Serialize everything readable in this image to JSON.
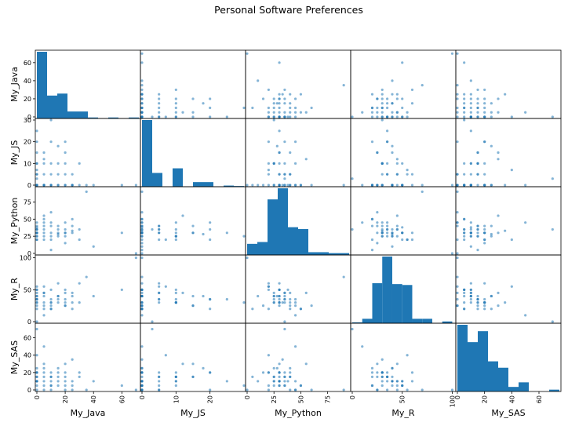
{
  "chart_data": {
    "type": "scatter",
    "title": "Personal Software Preferences",
    "variables": [
      "My_Java",
      "My_JS",
      "My_Python",
      "My_R",
      "My_SAS"
    ],
    "ranges": {
      "My_Java": [
        0,
        72
      ],
      "My_JS": [
        0,
        30
      ],
      "My_Python": [
        0,
        95
      ],
      "My_R": [
        0,
        102
      ],
      "My_SAS": [
        0,
        75
      ]
    },
    "x_ticks": {
      "My_Java": [
        0,
        20,
        40,
        60
      ],
      "My_JS": [
        0,
        10,
        20
      ],
      "My_Python": [
        0,
        25,
        50,
        75
      ],
      "My_R": [
        0,
        50,
        100
      ],
      "My_SAS": [
        0,
        20,
        40,
        60
      ]
    },
    "y_ticks": {
      "My_Java": [
        0,
        20,
        40,
        60
      ],
      "My_JS": [
        0,
        10,
        20,
        30
      ],
      "My_Python": [
        0,
        25,
        50,
        75
      ],
      "My_R": [
        0,
        50,
        100
      ],
      "My_SAS": [
        0,
        20,
        40,
        60
      ]
    },
    "histograms": {
      "My_Java": {
        "edges": [
          0,
          7.2,
          14.4,
          21.6,
          28.8,
          36,
          43.2,
          50.4,
          57.6,
          64.8,
          72
        ],
        "counts": [
          67,
          23,
          25,
          7,
          7,
          1,
          0,
          1,
          0,
          1
        ]
      },
      "My_JS": {
        "edges": [
          0,
          3,
          6,
          9,
          12,
          15,
          18,
          21,
          24,
          27,
          30
        ],
        "counts": [
          29,
          6,
          0,
          8,
          0,
          2,
          2,
          0,
          0.5,
          0.3
        ]
      },
      "My_Python": {
        "edges": [
          0,
          9.5,
          19,
          28.5,
          38,
          47.5,
          57,
          66.5,
          76,
          85.5,
          95
        ],
        "counts": [
          12,
          14,
          60,
          72,
          30,
          28,
          3,
          3,
          2,
          2
        ]
      },
      "My_R": {
        "edges": [
          0,
          10,
          20,
          30,
          40,
          50,
          60,
          70,
          80,
          90,
          100
        ],
        "counts": [
          1,
          5,
          45,
          75,
          44,
          43,
          5,
          5,
          0,
          2
        ]
      },
      "My_SAS": {
        "edges": [
          0,
          7.5,
          15,
          22.5,
          30,
          37.5,
          45,
          52.5,
          60,
          67.5,
          75
        ],
        "counts": [
          73,
          54,
          66,
          33,
          26,
          5,
          10,
          0,
          0,
          2
        ]
      }
    },
    "observations": {
      "My_Java": [
        0,
        0,
        0,
        0,
        0,
        0,
        0,
        0,
        0,
        0,
        5,
        5,
        5,
        5,
        5,
        5,
        10,
        10,
        10,
        10,
        10,
        15,
        15,
        15,
        15,
        20,
        20,
        20,
        20,
        20,
        25,
        25,
        25,
        30,
        30,
        35,
        40,
        60,
        70,
        0,
        5,
        10,
        20,
        0,
        0,
        5,
        15,
        25,
        0,
        10
      ],
      "My_JS": [
        0,
        0,
        5,
        10,
        0,
        0,
        5,
        10,
        15,
        20,
        0,
        5,
        10,
        15,
        0,
        0,
        0,
        5,
        10,
        20,
        0,
        0,
        5,
        10,
        0,
        0,
        5,
        10,
        15,
        20,
        0,
        0,
        5,
        0,
        10,
        0,
        0,
        0,
        0,
        25,
        0,
        30,
        0,
        3,
        7,
        12,
        18,
        0,
        0,
        0
      ],
      "My_Python": [
        25,
        30,
        35,
        20,
        40,
        45,
        30,
        25,
        30,
        35,
        50,
        20,
        30,
        40,
        25,
        35,
        30,
        40,
        45,
        20,
        60,
        35,
        30,
        25,
        40,
        30,
        35,
        25,
        30,
        45,
        50,
        30,
        40,
        20,
        35,
        90,
        10,
        30,
        0,
        30,
        45,
        25,
        15,
        35,
        20,
        55,
        28,
        33,
        38,
        5
      ],
      "My_R": [
        40,
        30,
        35,
        50,
        20,
        25,
        30,
        45,
        40,
        35,
        20,
        55,
        30,
        25,
        40,
        45,
        50,
        35,
        30,
        20,
        25,
        40,
        60,
        35,
        30,
        50,
        45,
        30,
        25,
        35,
        20,
        40,
        45,
        60,
        30,
        70,
        40,
        50,
        100,
        35,
        10,
        30,
        25,
        0,
        55,
        45,
        40,
        30,
        50,
        20
      ],
      "My_SAS": [
        10,
        20,
        15,
        5,
        25,
        0,
        20,
        10,
        15,
        20,
        5,
        0,
        20,
        15,
        25,
        10,
        5,
        15,
        10,
        20,
        0,
        5,
        10,
        15,
        20,
        10,
        5,
        15,
        30,
        0,
        5,
        10,
        0,
        20,
        15,
        0,
        10,
        5,
        0,
        10,
        50,
        5,
        20,
        70,
        40,
        30,
        25,
        35,
        10,
        15
      ]
    }
  }
}
